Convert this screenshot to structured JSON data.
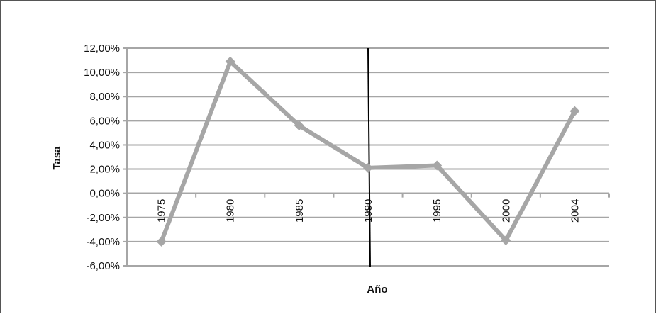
{
  "chart_data": {
    "type": "line",
    "title": "",
    "xlabel": "Año",
    "ylabel": "Tasa",
    "categories": [
      "1975",
      "1980",
      "1985",
      "1990",
      "1995",
      "2000",
      "2004"
    ],
    "series": [
      {
        "values": [
          -4.0,
          10.9,
          5.6,
          2.1,
          2.3,
          -3.9,
          6.8
        ],
        "color": "#a6a6a6"
      }
    ],
    "y_ticks": [
      "12,00%",
      "10,00%",
      "8,00%",
      "6,00%",
      "4,00%",
      "2,00%",
      "0,00%",
      "-2,00%",
      "-4,00%",
      "-6,00%"
    ],
    "ylim": [
      -6,
      12
    ],
    "y_major_unit": 2,
    "grid": "horizontal",
    "legend": "none",
    "reference_line": {
      "at_category": "1990",
      "color": "#000000"
    },
    "colors": {
      "gridline": "#a6a6a6",
      "axis": "#a6a6a6",
      "series": "#a6a6a6",
      "reference": "#000000"
    }
  }
}
